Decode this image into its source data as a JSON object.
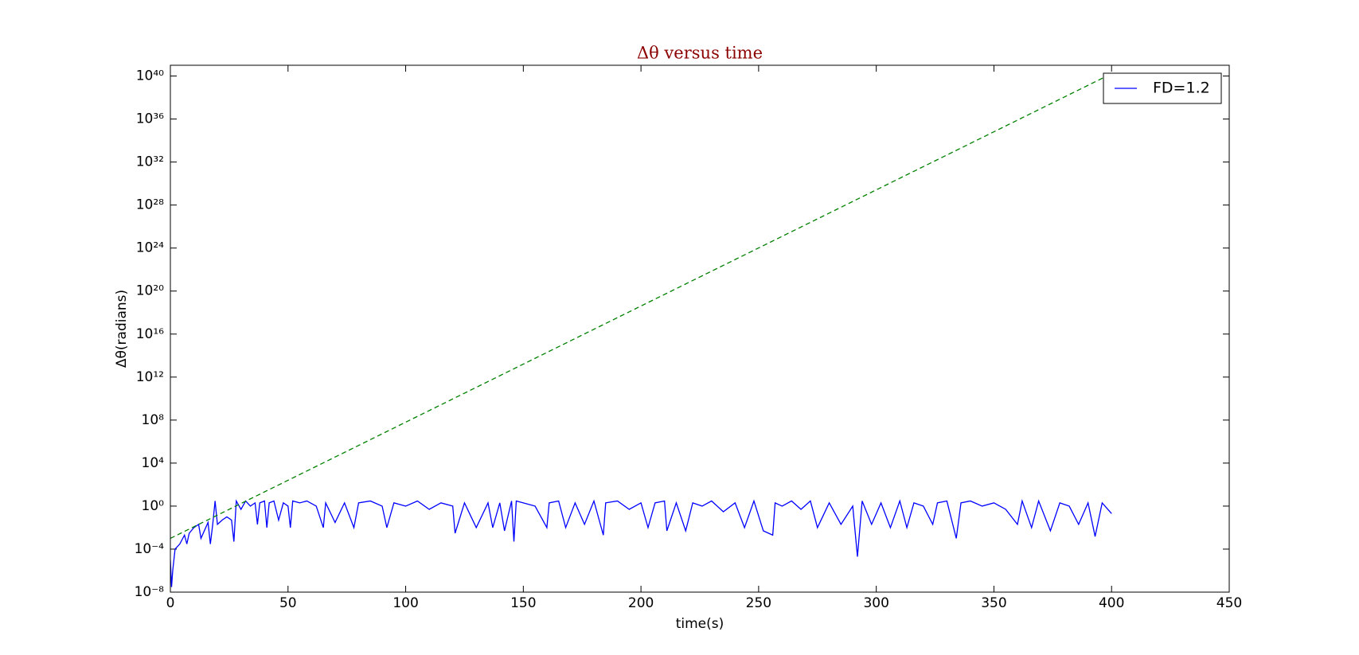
{
  "chart_data": {
    "type": "line",
    "title": "Δθ versus time",
    "xlabel": "time(s)",
    "ylabel": "Δθ(radians)",
    "yscale": "log",
    "grid": false,
    "legend": "upper right",
    "title_color": "#8b0000",
    "xlim": [
      0,
      450
    ],
    "xticks": [
      0,
      50,
      100,
      150,
      200,
      250,
      300,
      350,
      400,
      450
    ],
    "ylim": [
      1e-08,
      1e+41
    ],
    "yticks": [
      {
        "value": 1e-08,
        "label": "10⁻⁸"
      },
      {
        "value": 0.0001,
        "label": "10⁻⁴"
      },
      {
        "value": 1,
        "label": "10⁰"
      },
      {
        "value": 10000.0,
        "label": "10⁴"
      },
      {
        "value": 100000000.0,
        "label": "10⁸"
      },
      {
        "value": 1000000000000.0,
        "label": "10¹²"
      },
      {
        "value": 1e+16,
        "label": "10¹⁶"
      },
      {
        "value": 1e+20,
        "label": "10²⁰"
      },
      {
        "value": 1e+24,
        "label": "10²⁴"
      },
      {
        "value": 1e+28,
        "label": "10²⁸"
      },
      {
        "value": 1e+32,
        "label": "10³²"
      },
      {
        "value": 1e+36,
        "label": "10³⁶"
      },
      {
        "value": 1e+40,
        "label": "10⁴⁰"
      }
    ],
    "series": [
      {
        "name": "FD=1.2",
        "color": "#0000ff",
        "linestyle": "solid",
        "x": [
          0,
          0.5,
          1,
          2,
          4,
          6,
          7,
          8,
          10,
          12,
          13,
          16,
          17,
          18,
          19,
          20,
          22,
          24,
          26,
          27,
          28,
          30,
          32,
          34,
          36,
          37,
          38,
          40,
          41,
          42,
          44,
          46,
          48,
          50,
          51,
          52,
          55,
          58,
          62,
          65,
          66,
          70,
          74,
          78,
          80,
          85,
          90,
          92,
          95,
          100,
          105,
          110,
          115,
          120,
          121,
          125,
          130,
          135,
          137,
          140,
          142,
          145,
          146,
          147,
          150,
          155,
          160,
          161,
          165,
          168,
          172,
          176,
          180,
          184,
          185,
          190,
          195,
          200,
          203,
          206,
          210,
          211,
          215,
          219,
          222,
          226,
          230,
          235,
          240,
          244,
          248,
          252,
          256,
          257,
          260,
          264,
          268,
          272,
          275,
          280,
          285,
          290,
          292,
          294,
          298,
          302,
          306,
          310,
          313,
          316,
          320,
          324,
          326,
          330,
          334,
          336,
          340,
          345,
          350,
          355,
          360,
          362,
          366,
          369,
          374,
          378,
          382,
          386,
          390,
          393,
          396,
          400
        ],
        "values": [
          1e-05,
          3e-08,
          1e-06,
          0.0001,
          0.0003,
          0.002,
          0.0003,
          0.003,
          0.01,
          0.02,
          0.001,
          0.03,
          0.0003,
          0.02,
          3,
          0.02,
          0.05,
          0.1,
          0.05,
          0.0005,
          3,
          0.5,
          3,
          1,
          2,
          0.02,
          2,
          3,
          0.01,
          2,
          3,
          0.05,
          2,
          1,
          0.01,
          3,
          2,
          3,
          1,
          0.01,
          2,
          0.03,
          2,
          0.01,
          2,
          3,
          1,
          0.01,
          2,
          1,
          3,
          0.5,
          2,
          1,
          0.003,
          2,
          0.01,
          2,
          0.01,
          2,
          0.005,
          3,
          0.0005,
          3,
          2,
          1,
          0.01,
          2,
          3,
          0.01,
          2,
          0.02,
          3,
          0.002,
          2,
          3,
          0.5,
          2,
          0.01,
          2,
          3,
          0.005,
          2,
          0.005,
          2,
          1,
          3,
          0.3,
          2,
          0.01,
          3,
          0.005,
          0.002,
          2,
          1,
          3,
          0.5,
          3,
          0.01,
          2,
          0.02,
          1,
          2e-05,
          3,
          0.02,
          2,
          0.01,
          3,
          0.01,
          2,
          1,
          0.02,
          2,
          3,
          0.001,
          2,
          3,
          1,
          2,
          0.5,
          0.02,
          3,
          0.01,
          3,
          0.005,
          2,
          1,
          0.02,
          2,
          0.0015,
          2,
          0.2
        ]
      },
      {
        "color": "#008000",
        "linestyle": "dashed",
        "x": [
          0,
          398
        ],
        "values": [
          0.001,
          1e+40
        ]
      }
    ]
  }
}
